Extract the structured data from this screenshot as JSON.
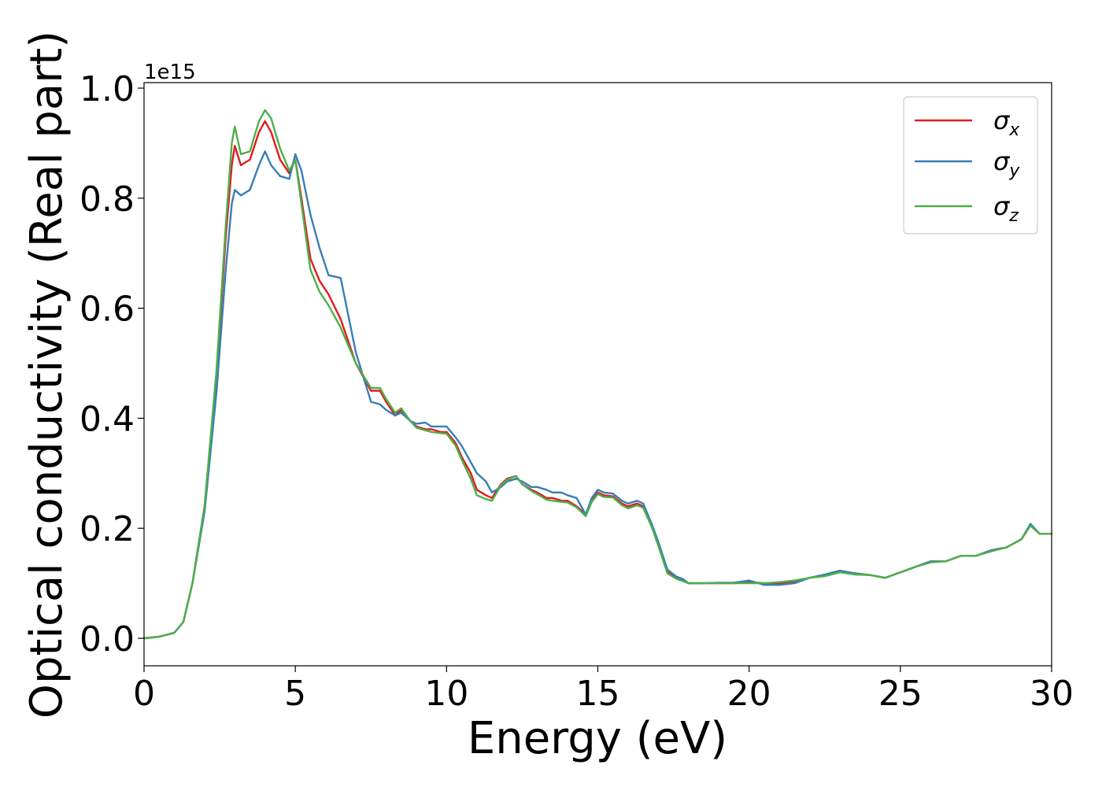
{
  "chart_data": {
    "type": "line",
    "xlabel": "Energy (eV)",
    "ylabel": "Optical conductivity (Real part)",
    "y_offset_text": "1e15",
    "xlim": [
      0,
      30
    ],
    "ylim": [
      -0.05,
      1.01
    ],
    "y_scale": 1000000000000000.0,
    "x_ticks": [
      0,
      5,
      10,
      15,
      20,
      25,
      30
    ],
    "x_tick_labels": [
      "0",
      "5",
      "10",
      "15",
      "20",
      "25",
      "30"
    ],
    "y_ticks": [
      0.0,
      0.2,
      0.4,
      0.6,
      0.8,
      1.0
    ],
    "y_tick_labels": [
      "0.0",
      "0.2",
      "0.4",
      "0.6",
      "0.8",
      "1.0"
    ],
    "grid": false,
    "legend_position": "top-right",
    "series": [
      {
        "name": "σx",
        "symbol": "σ",
        "subscript": "x",
        "color": "#e41a1c",
        "x": [
          0,
          0.5,
          1,
          1.3,
          1.6,
          2,
          2.4,
          2.7,
          2.9,
          3,
          3.2,
          3.5,
          3.8,
          4,
          4.2,
          4.5,
          4.8,
          5,
          5.2,
          5.5,
          5.8,
          6.1,
          6.5,
          7,
          7.5,
          7.8,
          8,
          8.3,
          8.5,
          8.8,
          9,
          9.3,
          9.5,
          9.8,
          10,
          10.3,
          10.5,
          10.8,
          11,
          11.3,
          11.5,
          11.8,
          12,
          12.3,
          12.5,
          12.8,
          13,
          13.3,
          13.5,
          13.8,
          14,
          14.3,
          14.6,
          14.8,
          15,
          15.2,
          15.5,
          15.8,
          16,
          16.3,
          16.5,
          16.8,
          17,
          17.3,
          17.6,
          17.8,
          18,
          18.5,
          19,
          19.5,
          20,
          20.5,
          21,
          21.5,
          22,
          22.5,
          23,
          23.5,
          24,
          24.5,
          25,
          25.5,
          26,
          26.5,
          27,
          27.5,
          28,
          28.5,
          29,
          29.3,
          29.6,
          30
        ],
        "values": [
          0,
          0.003,
          0.01,
          0.03,
          0.1,
          0.24,
          0.48,
          0.73,
          0.86,
          0.895,
          0.86,
          0.87,
          0.92,
          0.94,
          0.92,
          0.87,
          0.845,
          0.87,
          0.8,
          0.69,
          0.65,
          0.625,
          0.58,
          0.5,
          0.45,
          0.45,
          0.43,
          0.405,
          0.415,
          0.395,
          0.385,
          0.38,
          0.38,
          0.375,
          0.375,
          0.355,
          0.33,
          0.3,
          0.27,
          0.26,
          0.255,
          0.28,
          0.29,
          0.295,
          0.28,
          0.27,
          0.265,
          0.255,
          0.255,
          0.25,
          0.25,
          0.24,
          0.225,
          0.25,
          0.265,
          0.26,
          0.258,
          0.245,
          0.24,
          0.245,
          0.24,
          0.2,
          0.17,
          0.12,
          0.11,
          0.105,
          0.1,
          0.1,
          0.1,
          0.1,
          0.102,
          0.1,
          0.1,
          0.102,
          0.11,
          0.115,
          0.12,
          0.118,
          0.115,
          0.11,
          0.12,
          0.13,
          0.14,
          0.14,
          0.15,
          0.15,
          0.16,
          0.165,
          0.18,
          0.205,
          0.19,
          0.19
        ]
      },
      {
        "name": "σy",
        "symbol": "σ",
        "subscript": "y",
        "color": "#377eb8",
        "x": [
          0,
          0.5,
          1,
          1.3,
          1.6,
          2,
          2.4,
          2.7,
          2.9,
          3,
          3.2,
          3.5,
          3.8,
          4,
          4.2,
          4.5,
          4.8,
          5,
          5.2,
          5.5,
          5.8,
          6.1,
          6.5,
          7,
          7.5,
          7.8,
          8,
          8.3,
          8.5,
          8.8,
          9,
          9.3,
          9.5,
          9.8,
          10,
          10.3,
          10.5,
          10.8,
          11,
          11.3,
          11.5,
          11.8,
          12,
          12.3,
          12.5,
          12.8,
          13,
          13.3,
          13.5,
          13.8,
          14,
          14.3,
          14.6,
          14.8,
          15,
          15.2,
          15.5,
          15.8,
          16,
          16.3,
          16.5,
          16.8,
          17,
          17.3,
          17.6,
          17.8,
          18,
          18.5,
          19,
          19.5,
          20,
          20.5,
          21,
          21.5,
          22,
          22.5,
          23,
          23.5,
          24,
          24.5,
          25,
          25.5,
          26,
          26.5,
          27,
          27.5,
          28,
          28.5,
          29,
          29.3,
          29.6,
          30
        ],
        "values": [
          0,
          0.003,
          0.01,
          0.03,
          0.1,
          0.23,
          0.45,
          0.67,
          0.79,
          0.815,
          0.805,
          0.815,
          0.86,
          0.885,
          0.86,
          0.84,
          0.835,
          0.88,
          0.85,
          0.77,
          0.71,
          0.66,
          0.655,
          0.52,
          0.43,
          0.425,
          0.415,
          0.405,
          0.41,
          0.395,
          0.39,
          0.392,
          0.385,
          0.385,
          0.385,
          0.365,
          0.35,
          0.32,
          0.3,
          0.285,
          0.265,
          0.275,
          0.285,
          0.29,
          0.285,
          0.275,
          0.275,
          0.27,
          0.265,
          0.265,
          0.26,
          0.255,
          0.225,
          0.255,
          0.27,
          0.265,
          0.263,
          0.25,
          0.245,
          0.25,
          0.245,
          0.205,
          0.175,
          0.125,
          0.112,
          0.108,
          0.1,
          0.1,
          0.101,
          0.101,
          0.105,
          0.097,
          0.097,
          0.1,
          0.11,
          0.116,
          0.123,
          0.118,
          0.115,
          0.11,
          0.12,
          0.13,
          0.14,
          0.14,
          0.15,
          0.15,
          0.16,
          0.165,
          0.18,
          0.208,
          0.19,
          0.19
        ]
      },
      {
        "name": "σz",
        "symbol": "σ",
        "subscript": "z",
        "color": "#4daf4a",
        "x": [
          0,
          0.5,
          1,
          1.3,
          1.6,
          2,
          2.4,
          2.7,
          2.9,
          3,
          3.2,
          3.5,
          3.8,
          4,
          4.2,
          4.5,
          4.8,
          5,
          5.2,
          5.5,
          5.8,
          6.1,
          6.5,
          7,
          7.5,
          7.8,
          8,
          8.3,
          8.5,
          8.8,
          9,
          9.3,
          9.5,
          9.8,
          10,
          10.3,
          10.5,
          10.8,
          11,
          11.3,
          11.5,
          11.8,
          12,
          12.3,
          12.5,
          12.8,
          13,
          13.3,
          13.5,
          13.8,
          14,
          14.3,
          14.6,
          14.8,
          15,
          15.2,
          15.5,
          15.8,
          16,
          16.3,
          16.5,
          16.8,
          17,
          17.3,
          17.6,
          17.8,
          18,
          18.5,
          19,
          19.5,
          20,
          20.5,
          21,
          21.5,
          22,
          22.5,
          23,
          23.5,
          24,
          24.5,
          25,
          25.5,
          26,
          26.5,
          27,
          27.5,
          28,
          28.5,
          29,
          29.3,
          29.6,
          30
        ],
        "values": [
          0,
          0.003,
          0.01,
          0.03,
          0.1,
          0.24,
          0.49,
          0.75,
          0.9,
          0.93,
          0.88,
          0.885,
          0.94,
          0.96,
          0.945,
          0.89,
          0.85,
          0.87,
          0.79,
          0.67,
          0.63,
          0.605,
          0.565,
          0.5,
          0.455,
          0.455,
          0.435,
          0.41,
          0.418,
          0.395,
          0.383,
          0.378,
          0.375,
          0.373,
          0.372,
          0.35,
          0.325,
          0.29,
          0.26,
          0.253,
          0.25,
          0.278,
          0.288,
          0.295,
          0.28,
          0.268,
          0.262,
          0.252,
          0.25,
          0.248,
          0.247,
          0.238,
          0.222,
          0.248,
          0.262,
          0.257,
          0.256,
          0.242,
          0.236,
          0.242,
          0.237,
          0.2,
          0.168,
          0.118,
          0.108,
          0.104,
          0.1,
          0.1,
          0.1,
          0.1,
          0.1,
          0.1,
          0.102,
          0.105,
          0.11,
          0.113,
          0.12,
          0.116,
          0.115,
          0.11,
          0.12,
          0.13,
          0.138,
          0.14,
          0.15,
          0.15,
          0.158,
          0.165,
          0.18,
          0.205,
          0.19,
          0.19
        ]
      }
    ]
  }
}
